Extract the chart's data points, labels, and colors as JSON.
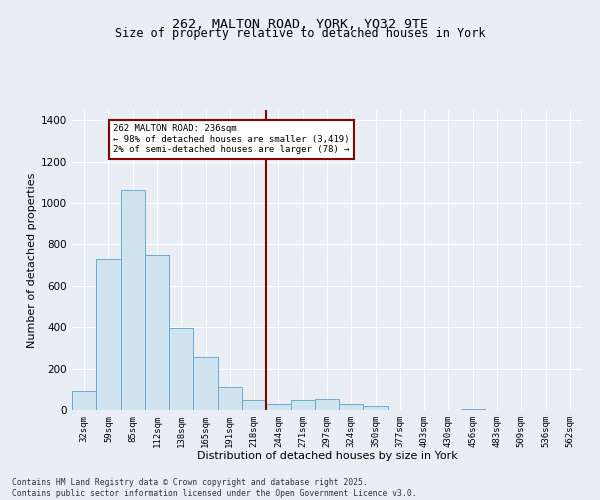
{
  "title_line1": "262, MALTON ROAD, YORK, YO32 9TE",
  "title_line2": "Size of property relative to detached houses in York",
  "xlabel": "Distribution of detached houses by size in York",
  "ylabel": "Number of detached properties",
  "bar_labels": [
    "32sqm",
    "59sqm",
    "85sqm",
    "112sqm",
    "138sqm",
    "165sqm",
    "191sqm",
    "218sqm",
    "244sqm",
    "271sqm",
    "297sqm",
    "324sqm",
    "350sqm",
    "377sqm",
    "403sqm",
    "430sqm",
    "456sqm",
    "483sqm",
    "509sqm",
    "536sqm",
    "562sqm"
  ],
  "bar_values": [
    90,
    730,
    1065,
    750,
    395,
    255,
    110,
    50,
    30,
    50,
    55,
    30,
    20,
    0,
    0,
    0,
    5,
    0,
    0,
    0,
    0
  ],
  "bar_color": "#d0e4f0",
  "bar_edge_color": "#6aaad4",
  "vline_x": 8.0,
  "vline_color": "#8b0000",
  "annotation_text": "262 MALTON ROAD: 236sqm\n← 98% of detached houses are smaller (3,419)\n2% of semi-detached houses are larger (78) →",
  "box_color": "#8b0000",
  "ylim": [
    0,
    1450
  ],
  "yticks": [
    0,
    200,
    400,
    600,
    800,
    1000,
    1200,
    1400
  ],
  "bg_color": "#e8eef4",
  "footer_line1": "Contains HM Land Registry data © Crown copyright and database right 2025.",
  "footer_line2": "Contains public sector information licensed under the Open Government Licence v3.0."
}
